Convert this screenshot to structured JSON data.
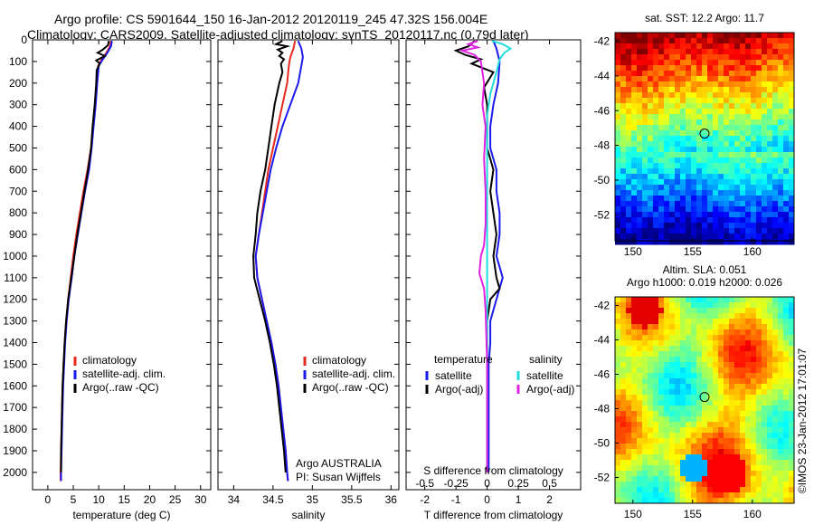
{
  "header": {
    "line1": "Argo profile: CS 5901644_150 16-Jan-2012 20120119_245 47.32S 156.004E",
    "line2": "Climatology: CARS2009. Satellite-adjusted climatology: synTS_20120117.nc (0.79d later)"
  },
  "chart_data": [
    {
      "type": "line",
      "panel": "temperature",
      "xlabel": "temperature (deg C)",
      "ylabel": "",
      "xlim": [
        -3,
        32
      ],
      "ylim": [
        2080,
        0
      ],
      "x_ticks": [
        0,
        5,
        10,
        15,
        20,
        25,
        30
      ],
      "y_ticks": [
        0,
        100,
        200,
        300,
        400,
        500,
        600,
        700,
        800,
        900,
        1000,
        1100,
        1200,
        1300,
        1400,
        1500,
        1600,
        1700,
        1800,
        1900,
        2000
      ],
      "legend": [
        "climatology",
        "satellite-adj. clim.",
        "Argo(..raw -QC)"
      ],
      "legend_position": "lower-center",
      "series": [
        {
          "name": "climatology",
          "color": "#e8281e",
          "points": [
            [
              12.4,
              5
            ],
            [
              12.2,
              30
            ],
            [
              11.5,
              60
            ],
            [
              10.6,
              90
            ],
            [
              9.9,
              120
            ],
            [
              9.6,
              200
            ],
            [
              9.3,
              300
            ],
            [
              8.9,
              400
            ],
            [
              8.5,
              500
            ],
            [
              7.8,
              600
            ],
            [
              7.0,
              700
            ],
            [
              6.3,
              800
            ],
            [
              5.6,
              900
            ],
            [
              5.0,
              1000
            ],
            [
              4.5,
              1100
            ],
            [
              4.0,
              1200
            ],
            [
              3.6,
              1300
            ],
            [
              3.3,
              1400
            ],
            [
              3.1,
              1500
            ],
            [
              2.9,
              1600
            ],
            [
              2.8,
              1700
            ],
            [
              2.7,
              1800
            ],
            [
              2.6,
              1900
            ],
            [
              2.5,
              2000
            ],
            [
              2.5,
              2040
            ]
          ]
        },
        {
          "name": "satellite-adj. clim.",
          "color": "#1a1aee",
          "points": [
            [
              12.6,
              5
            ],
            [
              12.4,
              30
            ],
            [
              11.7,
              60
            ],
            [
              10.8,
              90
            ],
            [
              10.0,
              120
            ],
            [
              9.7,
              200
            ],
            [
              9.4,
              300
            ],
            [
              9.0,
              400
            ],
            [
              8.6,
              500
            ],
            [
              8.1,
              600
            ],
            [
              7.3,
              700
            ],
            [
              6.6,
              800
            ],
            [
              5.9,
              900
            ],
            [
              5.2,
              1000
            ],
            [
              4.7,
              1100
            ],
            [
              4.1,
              1200
            ],
            [
              3.7,
              1300
            ],
            [
              3.4,
              1400
            ],
            [
              3.2,
              1500
            ],
            [
              3.0,
              1600
            ],
            [
              2.9,
              1700
            ],
            [
              2.8,
              1800
            ],
            [
              2.7,
              1900
            ],
            [
              2.6,
              2000
            ],
            [
              2.6,
              2040
            ]
          ]
        },
        {
          "name": "Argo(..raw -QC)",
          "color": "#000000",
          "points": [
            [
              12.0,
              5
            ],
            [
              11.8,
              25
            ],
            [
              10.8,
              45
            ],
            [
              9.8,
              60
            ],
            [
              11.2,
              75
            ],
            [
              9.5,
              95
            ],
            [
              10.2,
              110
            ],
            [
              9.6,
              140
            ],
            [
              9.5,
              200
            ],
            [
              9.2,
              300
            ],
            [
              8.8,
              400
            ],
            [
              8.5,
              500
            ],
            [
              7.9,
              600
            ],
            [
              7.2,
              700
            ],
            [
              6.5,
              800
            ],
            [
              5.8,
              900
            ],
            [
              5.2,
              1000
            ],
            [
              4.6,
              1100
            ],
            [
              4.0,
              1200
            ],
            [
              3.6,
              1300
            ],
            [
              3.3,
              1400
            ],
            [
              3.1,
              1500
            ],
            [
              2.9,
              1600
            ],
            [
              2.8,
              1700
            ],
            [
              2.7,
              1800
            ],
            [
              2.6,
              1900
            ],
            [
              2.6,
              2000
            ]
          ]
        }
      ]
    },
    {
      "type": "line",
      "panel": "salinity",
      "xlabel": "salinity",
      "xlim": [
        33.8,
        36.1
      ],
      "ylim": [
        2080,
        0
      ],
      "x_ticks": [
        34,
        34.5,
        35,
        35.5,
        36
      ],
      "legend": [
        "climatology",
        "satellite-adj. clim.",
        "Argo(..raw -QC)"
      ],
      "legend_position": "lower-right",
      "annotation_lines": [
        "Argo AUSTRALIA",
        "PI: Susan Wijffels"
      ],
      "series": [
        {
          "name": "climatology",
          "color": "#e8281e",
          "points": [
            [
              34.78,
              5
            ],
            [
              34.76,
              40
            ],
            [
              34.72,
              80
            ],
            [
              34.7,
              120
            ],
            [
              34.68,
              200
            ],
            [
              34.62,
              300
            ],
            [
              34.56,
              400
            ],
            [
              34.5,
              500
            ],
            [
              34.44,
              600
            ],
            [
              34.4,
              700
            ],
            [
              34.36,
              800
            ],
            [
              34.32,
              900
            ],
            [
              34.28,
              1000
            ],
            [
              34.3,
              1100
            ],
            [
              34.36,
              1200
            ],
            [
              34.42,
              1300
            ],
            [
              34.48,
              1400
            ],
            [
              34.53,
              1500
            ],
            [
              34.57,
              1600
            ],
            [
              34.6,
              1700
            ],
            [
              34.63,
              1800
            ],
            [
              34.66,
              1900
            ],
            [
              34.68,
              2000
            ],
            [
              34.69,
              2040
            ]
          ]
        },
        {
          "name": "satellite-adj. clim.",
          "color": "#1a1aee",
          "points": [
            [
              34.82,
              5
            ],
            [
              34.86,
              40
            ],
            [
              34.88,
              80
            ],
            [
              34.86,
              120
            ],
            [
              34.82,
              200
            ],
            [
              34.72,
              300
            ],
            [
              34.62,
              400
            ],
            [
              34.54,
              500
            ],
            [
              34.47,
              600
            ],
            [
              34.42,
              700
            ],
            [
              34.37,
              800
            ],
            [
              34.32,
              900
            ],
            [
              34.28,
              1000
            ],
            [
              34.3,
              1100
            ],
            [
              34.36,
              1200
            ],
            [
              34.42,
              1300
            ],
            [
              34.48,
              1400
            ],
            [
              34.53,
              1500
            ],
            [
              34.57,
              1600
            ],
            [
              34.6,
              1700
            ],
            [
              34.63,
              1800
            ],
            [
              34.66,
              1900
            ],
            [
              34.68,
              2000
            ],
            [
              34.69,
              2040
            ]
          ]
        },
        {
          "name": "Argo(..raw -QC)",
          "color": "#000000",
          "points": [
            [
              34.62,
              5
            ],
            [
              34.54,
              20
            ],
            [
              34.68,
              30
            ],
            [
              34.56,
              45
            ],
            [
              34.62,
              60
            ],
            [
              34.58,
              75
            ],
            [
              34.64,
              90
            ],
            [
              34.6,
              110
            ],
            [
              34.62,
              150
            ],
            [
              34.58,
              200
            ],
            [
              34.52,
              300
            ],
            [
              34.48,
              400
            ],
            [
              34.44,
              500
            ],
            [
              34.4,
              600
            ],
            [
              34.34,
              700
            ],
            [
              34.3,
              800
            ],
            [
              34.28,
              900
            ],
            [
              34.25,
              1000
            ],
            [
              34.26,
              1100
            ],
            [
              34.33,
              1200
            ],
            [
              34.4,
              1300
            ],
            [
              34.46,
              1400
            ],
            [
              34.51,
              1500
            ],
            [
              34.55,
              1600
            ],
            [
              34.58,
              1700
            ],
            [
              34.61,
              1800
            ],
            [
              34.64,
              1900
            ],
            [
              34.66,
              2000
            ]
          ]
        }
      ]
    },
    {
      "type": "line",
      "panel": "difference",
      "xlabel": "T difference from climatology",
      "xlabel_top": "S difference from climatology",
      "xlim": [
        -2.6,
        3.0
      ],
      "ylim": [
        2080,
        0
      ],
      "x_ticks": [
        -2,
        -1,
        0,
        1,
        2
      ],
      "x_ticks_top": [
        "-0.5",
        "-0.25",
        "0",
        "0.25",
        "0.5"
      ],
      "legend_groups": [
        {
          "title": "temperature",
          "entries": [
            "satellite",
            "Argo(-adj)"
          ]
        },
        {
          "title": "salinity",
          "entries": [
            "satellite",
            "Argo(-adj)"
          ]
        }
      ],
      "series": [
        {
          "name": "temperature satellite",
          "color": "#1a1aee",
          "points": [
            [
              0.2,
              5
            ],
            [
              0.3,
              40
            ],
            [
              0.4,
              100
            ],
            [
              0.35,
              200
            ],
            [
              0.2,
              300
            ],
            [
              0.1,
              400
            ],
            [
              0.1,
              500
            ],
            [
              0.3,
              600
            ],
            [
              0.3,
              700
            ],
            [
              0.4,
              800
            ],
            [
              0.4,
              900
            ],
            [
              0.3,
              1000
            ],
            [
              0.5,
              1100
            ],
            [
              0.3,
              1200
            ],
            [
              0.1,
              1300
            ],
            [
              0.1,
              1400
            ],
            [
              0.05,
              1500
            ],
            [
              0.05,
              1700
            ],
            [
              0.05,
              2000
            ]
          ]
        },
        {
          "name": "temperature Argo(-adj)",
          "color": "#000000",
          "points": [
            [
              -0.4,
              5
            ],
            [
              -0.6,
              30
            ],
            [
              -1.0,
              50
            ],
            [
              -0.7,
              70
            ],
            [
              -0.2,
              90
            ],
            [
              -0.5,
              110
            ],
            [
              0.2,
              150
            ],
            [
              -0.1,
              220
            ],
            [
              0,
              300
            ],
            [
              0,
              400
            ],
            [
              0,
              500
            ],
            [
              0.2,
              600
            ],
            [
              0.1,
              700
            ],
            [
              0.2,
              800
            ],
            [
              0.3,
              900
            ],
            [
              0.2,
              1000
            ],
            [
              0.3,
              1100
            ],
            [
              0.4,
              1150
            ],
            [
              0.1,
              1200
            ],
            [
              0,
              1300
            ],
            [
              0,
              1500
            ],
            [
              0,
              1700
            ],
            [
              0,
              2000
            ]
          ]
        },
        {
          "name": "salinity satellite",
          "color": "#22dddd",
          "points": [
            [
              0.15,
              5
            ],
            [
              0.5,
              20
            ],
            [
              0.75,
              40
            ],
            [
              0.55,
              60
            ],
            [
              0.4,
              90
            ],
            [
              0.3,
              150
            ],
            [
              0.1,
              250
            ],
            [
              0.0,
              350
            ],
            [
              0,
              500
            ],
            [
              0,
              700
            ],
            [
              0,
              900
            ],
            [
              0,
              1200
            ],
            [
              0,
              1500
            ],
            [
              0,
              2000
            ]
          ]
        },
        {
          "name": "salinity Argo(-adj)",
          "color": "#e020e0",
          "points": [
            [
              -0.3,
              5
            ],
            [
              -0.6,
              20
            ],
            [
              -0.3,
              35
            ],
            [
              -0.8,
              50
            ],
            [
              -0.4,
              70
            ],
            [
              -0.2,
              100
            ],
            [
              -0.1,
              200
            ],
            [
              -0.15,
              300
            ],
            [
              -0.05,
              400
            ],
            [
              -0.1,
              550
            ],
            [
              -0.05,
              700
            ],
            [
              -0.05,
              850
            ],
            [
              -0.1,
              950
            ],
            [
              -0.2,
              1000
            ],
            [
              -0.25,
              1080
            ],
            [
              -0.1,
              1150
            ],
            [
              -0.05,
              1250
            ],
            [
              0,
              1500
            ],
            [
              0,
              2000
            ]
          ]
        }
      ]
    },
    {
      "type": "heatmap",
      "panel": "sst-map",
      "title": "sat. SST: 12.2 Argo: 11.7",
      "xlim": [
        148.5,
        163.5
      ],
      "ylim": [
        -53.5,
        -41.5
      ],
      "x_ticks": [
        150,
        155,
        160
      ],
      "y_ticks": [
        -42,
        -44,
        -46,
        -48,
        -50,
        -52
      ],
      "marker": {
        "lon": 156.0,
        "lat": -47.32
      }
    },
    {
      "type": "heatmap",
      "panel": "sla-map",
      "title_lines": [
        "Altim. SLA: 0.051",
        "Argo h1000: 0.019 h2000: 0.026"
      ],
      "xlim": [
        148.5,
        163.5
      ],
      "ylim": [
        -53.5,
        -41.5
      ],
      "x_ticks": [
        150,
        155,
        160
      ],
      "y_ticks": [
        -42,
        -44,
        -46,
        -48,
        -50,
        -52
      ],
      "marker": {
        "lon": 156.0,
        "lat": -47.32
      }
    }
  ],
  "footer": {
    "credit": "©IMOS 23-Jan-2012 17:01:07"
  }
}
